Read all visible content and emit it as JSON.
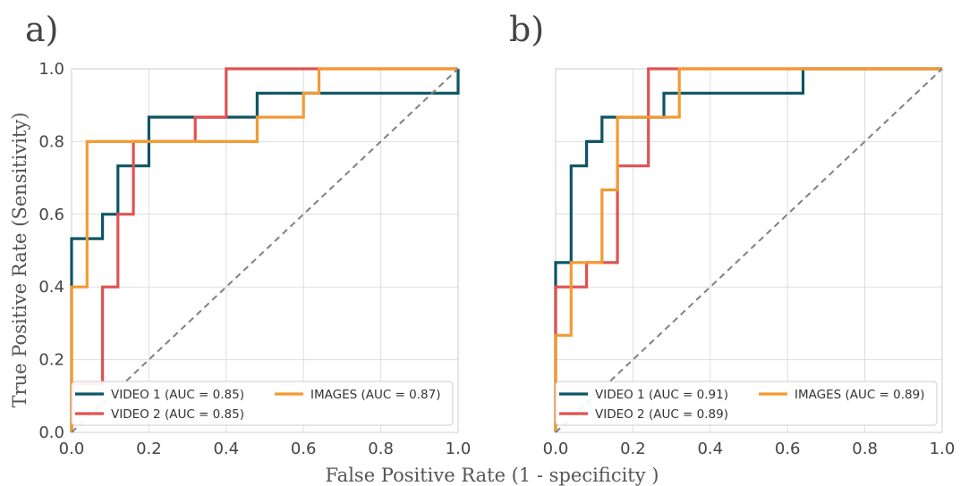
{
  "colors": {
    "video1": "#0d5566",
    "video2": "#e05252",
    "images": "#f39a33",
    "diagonal": "#808080",
    "grid": "#dddddd",
    "frame": "#cccccc"
  },
  "shared": {
    "xlabel": "False Positive Rate (1 - specificity )",
    "ylabel": "True Positive Rate (Sensitivity)"
  },
  "chart_data": [
    {
      "type": "line",
      "panel_label": "a)",
      "xlim": [
        0,
        1
      ],
      "ylim": [
        0,
        1
      ],
      "grid": true,
      "x_ticks": [
        "0.0",
        "0.2",
        "0.4",
        "0.6",
        "0.8",
        "1.0"
      ],
      "y_ticks": [
        "0.0",
        "0.2",
        "0.4",
        "0.6",
        "0.8",
        "1.0"
      ],
      "legend_position": "bottom",
      "series": [
        {
          "name": "VIDEO 1 (AUC = 0.85)",
          "color_key": "video1",
          "x": [
            0,
            0,
            0,
            0.08,
            0.08,
            0.12,
            0.12,
            0.2,
            0.2,
            0.48,
            0.48,
            1.0,
            1.0
          ],
          "y": [
            0,
            0.4,
            0.533,
            0.533,
            0.6,
            0.6,
            0.733,
            0.733,
            0.867,
            0.867,
            0.933,
            0.933,
            1.0
          ]
        },
        {
          "name": "VIDEO 2 (AUC = 0.85)",
          "color_key": "video2",
          "x": [
            0,
            0,
            0.08,
            0.08,
            0.12,
            0.12,
            0.16,
            0.16,
            0.32,
            0.32,
            0.4,
            0.4,
            1.0
          ],
          "y": [
            0,
            0.133,
            0.133,
            0.4,
            0.4,
            0.6,
            0.6,
            0.8,
            0.8,
            0.867,
            0.867,
            1.0,
            1.0
          ]
        },
        {
          "name": "IMAGES (AUC = 0.87)",
          "color_key": "images",
          "x": [
            0,
            0,
            0.04,
            0.04,
            0.48,
            0.48,
            0.6,
            0.6,
            0.64,
            0.64,
            1.0
          ],
          "y": [
            0,
            0.4,
            0.4,
            0.8,
            0.8,
            0.867,
            0.867,
            0.933,
            0.933,
            1.0,
            1.0
          ]
        },
        {
          "name": "",
          "color_key": "diagonal",
          "dashed": true,
          "x": [
            0,
            1
          ],
          "y": [
            0,
            1
          ]
        }
      ]
    },
    {
      "type": "line",
      "panel_label": "b)",
      "xlim": [
        0,
        1
      ],
      "ylim": [
        0,
        1
      ],
      "grid": true,
      "x_ticks": [
        "0.0",
        "0.2",
        "0.4",
        "0.6",
        "0.8",
        "1.0"
      ],
      "y_ticks": [],
      "legend_position": "bottom",
      "series": [
        {
          "name": "VIDEO 1 (AUC = 0.91)",
          "color_key": "video1",
          "x": [
            0,
            0,
            0.04,
            0.04,
            0.08,
            0.08,
            0.12,
            0.12,
            0.28,
            0.28,
            0.64,
            0.64,
            1.0
          ],
          "y": [
            0,
            0.467,
            0.467,
            0.733,
            0.733,
            0.8,
            0.8,
            0.867,
            0.867,
            0.933,
            0.933,
            1.0,
            1.0
          ]
        },
        {
          "name": "VIDEO 2 (AUC = 0.89)",
          "color_key": "video2",
          "x": [
            0,
            0,
            0.08,
            0.08,
            0.16,
            0.16,
            0.24,
            0.24,
            1.0
          ],
          "y": [
            0,
            0.4,
            0.4,
            0.467,
            0.467,
            0.733,
            0.733,
            1.0,
            1.0
          ]
        },
        {
          "name": "IMAGES (AUC = 0.89)",
          "color_key": "images",
          "x": [
            0,
            0,
            0.04,
            0.04,
            0.12,
            0.12,
            0.16,
            0.16,
            0.32,
            0.32,
            1.0
          ],
          "y": [
            0,
            0.267,
            0.267,
            0.467,
            0.467,
            0.667,
            0.667,
            0.867,
            0.867,
            1.0,
            1.0
          ]
        },
        {
          "name": "",
          "color_key": "diagonal",
          "dashed": true,
          "x": [
            0,
            1
          ],
          "y": [
            0,
            1
          ]
        }
      ]
    }
  ]
}
